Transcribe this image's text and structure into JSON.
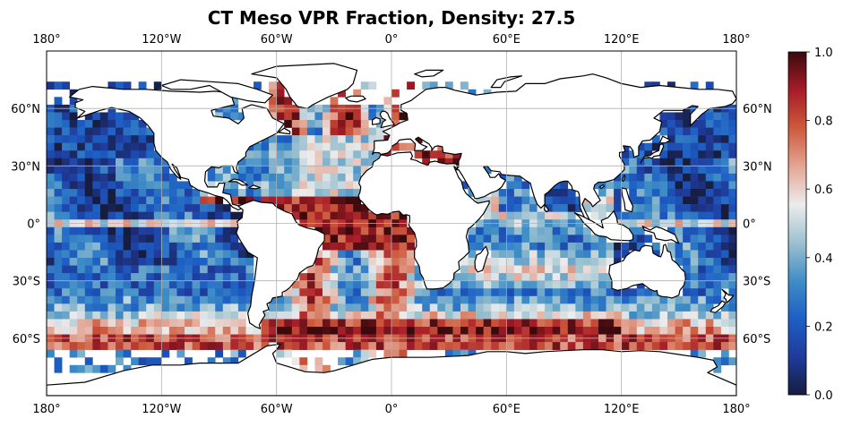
{
  "title": "CT Meso VPR Fraction, Density: 27.5",
  "map": {
    "projection": "PlateCarree",
    "lon_range": [
      -180,
      180
    ],
    "lat_range": [
      -90,
      90
    ],
    "lon_ticks": [
      {
        "value": -180,
        "label": "180°"
      },
      {
        "value": -120,
        "label": "120°W"
      },
      {
        "value": -60,
        "label": "60°W"
      },
      {
        "value": 0,
        "label": "0°"
      },
      {
        "value": 60,
        "label": "60°E"
      },
      {
        "value": 120,
        "label": "120°E"
      },
      {
        "value": 180,
        "label": "180°"
      }
    ],
    "lat_ticks": [
      {
        "value": 60,
        "label": "60°N"
      },
      {
        "value": 30,
        "label": "30°N"
      },
      {
        "value": 0,
        "label": "0°"
      },
      {
        "value": -30,
        "label": "30°S"
      },
      {
        "value": -60,
        "label": "60°S"
      }
    ],
    "grid": true,
    "coastlines": true,
    "land_color": "#ffffff",
    "ocean_no_data_color": "#ffffff"
  },
  "colorbar": {
    "colormap": "balance (diverging: dark blue -> white -> dark red)",
    "range": [
      0.0,
      1.0
    ],
    "ticks": [
      {
        "value": 0.0,
        "label": "0.0"
      },
      {
        "value": 0.2,
        "label": "0.2"
      },
      {
        "value": 0.4,
        "label": "0.4"
      },
      {
        "value": 0.6,
        "label": "0.6"
      },
      {
        "value": 0.8,
        "label": "0.8"
      },
      {
        "value": 1.0,
        "label": "1.0"
      }
    ],
    "placement": "right"
  },
  "colors": {
    "cmap_stops": [
      "#161d3f",
      "#1f3b9c",
      "#1d5fc4",
      "#3f8ec6",
      "#9dc2cf",
      "#ececec",
      "#e3a594",
      "#cd5a3c",
      "#a71c28",
      "#3a0a0d"
    ]
  }
}
